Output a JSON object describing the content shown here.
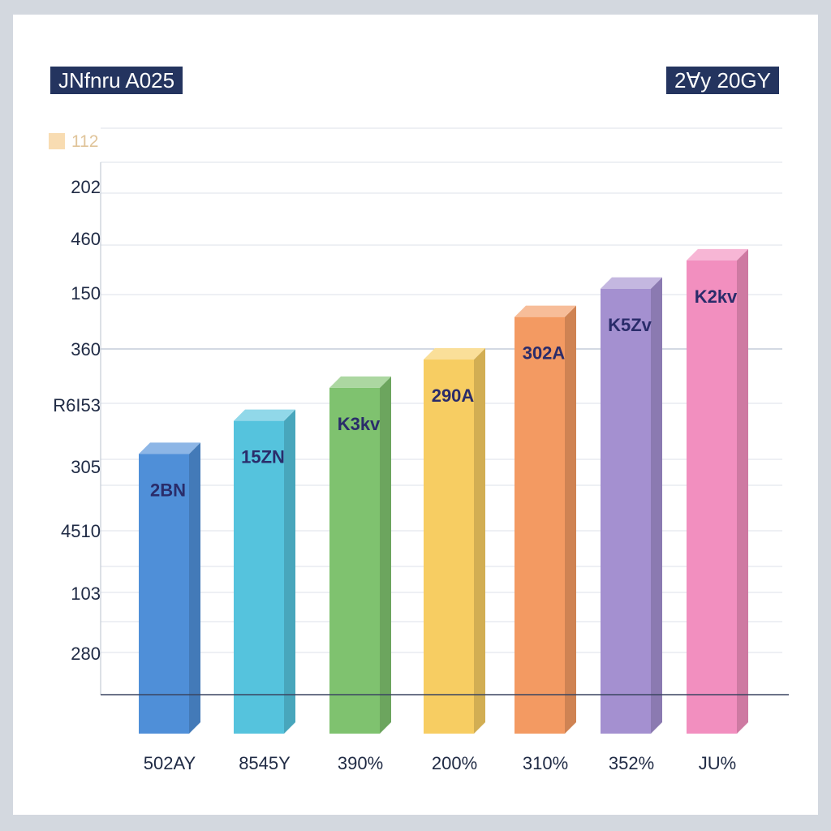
{
  "header": {
    "title_left": "JNfnru A025",
    "title_right": "2Ɐy 20GY",
    "marker": "112"
  },
  "chart_data": {
    "type": "bar",
    "title": "JNfnru A025",
    "subtitle": "2Ɐy 20GY",
    "xlabel": "",
    "ylabel": "",
    "ylim": [
      0,
      12
    ],
    "grid": true,
    "yticks": [
      "202",
      "460",
      "150",
      "360",
      "R6I53",
      "305",
      "4510",
      "103",
      "280"
    ],
    "categories": [
      "502AY",
      "8545Y",
      "390%",
      "200%",
      "310%",
      "352%",
      "JU%"
    ],
    "values": [
      5.1,
      5.8,
      6.5,
      7.1,
      8.0,
      8.6,
      9.2
    ],
    "data_labels": [
      "2BN",
      "15ZN",
      "K3kv",
      "290A",
      "302A",
      "K5Zv",
      "K2kv"
    ],
    "colors": [
      "#4f8fd8",
      "#55c3dd",
      "#7fc26f",
      "#f7cd62",
      "#f39a62",
      "#a490d0",
      "#f28fbf"
    ]
  }
}
